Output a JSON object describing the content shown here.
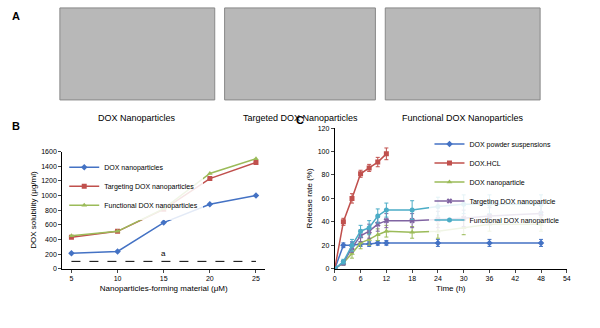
{
  "figure": {
    "panel_a": {
      "label": "A",
      "images": [
        {
          "caption": "DOX Nanoparticles"
        },
        {
          "caption": "Targeted DOX Nanoparticles"
        },
        {
          "caption": "Functional DOX Nanoparticles"
        }
      ]
    }
  },
  "chart_data": [
    {
      "label": "B",
      "type": "line",
      "x_label": "Nanoparticles-forming material (μM)",
      "y_label": "DOX solubility (μg/ml)",
      "x": [
        5,
        10,
        15,
        20,
        25
      ],
      "series": [
        {
          "name": "DOX nanoparticles",
          "color": "#4472c4",
          "marker": "diamond",
          "values": [
            210,
            235,
            630,
            880,
            1000
          ]
        },
        {
          "name": "Targeting DOX nanoparticles",
          "color": "#c0504d",
          "marker": "square",
          "values": [
            430,
            510,
            810,
            1230,
            1450
          ]
        },
        {
          "name": "Functional DOX nanoparticles",
          "color": "#9bbb59",
          "marker": "triangle-up",
          "values": [
            450,
            510,
            820,
            1300,
            1500
          ]
        }
      ],
      "reference_line": {
        "x": [
          5,
          25
        ],
        "y": 100,
        "label": "a",
        "line_style": "dashed"
      },
      "xlim": [
        4,
        26
      ],
      "xticks": [
        5,
        10,
        15,
        20,
        25
      ],
      "ylim": [
        0,
        1600
      ],
      "yticks": [
        0,
        200,
        400,
        600,
        800,
        1000,
        1200,
        1400,
        1600
      ],
      "grid": false,
      "legend": "upper left"
    },
    {
      "label": "C",
      "type": "line",
      "x_label": "Time (h)",
      "y_label": "Release rate (%)",
      "series": [
        {
          "name": "DOX powder suspensions",
          "color": "#4472c4",
          "marker": "diamond",
          "x": [
            0,
            2,
            4,
            6,
            8,
            10,
            12,
            24,
            36,
            48
          ],
          "values": [
            0,
            20,
            20,
            21,
            21,
            22,
            22,
            22,
            22,
            22
          ],
          "errors": [
            0,
            2,
            3,
            2,
            2,
            2,
            2,
            3,
            3,
            3
          ]
        },
        {
          "name": "DOX.HCL",
          "color": "#c0504d",
          "marker": "square",
          "x": [
            0,
            2,
            4,
            6,
            8,
            10,
            12
          ],
          "values": [
            0,
            40,
            60,
            81,
            86,
            91,
            98
          ],
          "errors": [
            0,
            3,
            4,
            3,
            3,
            4,
            5
          ]
        },
        {
          "name": "DOX nanoparticle",
          "color": "#9bbb59",
          "marker": "triangle-up",
          "x": [
            0,
            2,
            4,
            6,
            8,
            10,
            12,
            18,
            24,
            30,
            36,
            48
          ],
          "values": [
            0,
            5,
            13,
            22,
            25,
            29,
            32,
            31,
            32,
            35,
            38,
            38
          ],
          "errors": [
            0,
            2,
            4,
            5,
            5,
            5,
            5,
            5,
            6,
            6,
            6,
            6
          ]
        },
        {
          "name": "Targeting DOX nanoparticle",
          "color": "#8064a2",
          "marker": "x",
          "x": [
            0,
            2,
            4,
            6,
            8,
            10,
            12,
            18,
            24,
            30,
            36,
            48
          ],
          "values": [
            0,
            5,
            18,
            28,
            32,
            38,
            41,
            41,
            42,
            43,
            45,
            47
          ],
          "errors": [
            0,
            2,
            4,
            5,
            6,
            6,
            6,
            6,
            7,
            7,
            7,
            7
          ]
        },
        {
          "name": "Functional DOX nanoparticle",
          "color": "#4bacc6",
          "marker": "circle",
          "x": [
            0,
            2,
            4,
            6,
            8,
            10,
            12,
            18,
            24,
            30,
            36,
            48
          ],
          "values": [
            0,
            6,
            20,
            32,
            35,
            45,
            50,
            50,
            53,
            55,
            55,
            55
          ],
          "errors": [
            0,
            2,
            5,
            5,
            6,
            6,
            6,
            8,
            8,
            8,
            8,
            8
          ]
        }
      ],
      "xlim": [
        0,
        54
      ],
      "xticks": [
        0,
        6,
        12,
        18,
        24,
        30,
        36,
        42,
        48,
        54
      ],
      "ylim": [
        0,
        120
      ],
      "yticks": [
        0,
        20,
        40,
        60,
        80,
        100,
        120
      ],
      "grid": false,
      "legend": "upper right"
    }
  ]
}
